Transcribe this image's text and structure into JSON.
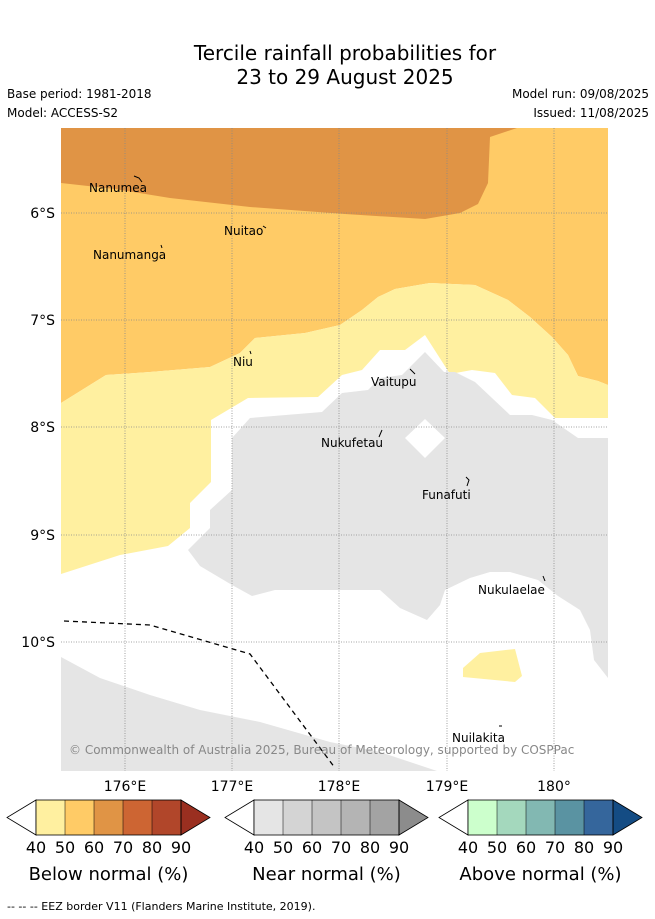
{
  "title": {
    "line1": "Tercile rainfall probabilities for",
    "line2": "23 to 29 August 2025"
  },
  "meta": {
    "base_period": "Base period: 1981-2018",
    "model": "Model: ACCESS-S2",
    "model_run": "Model run: 09/08/2025",
    "issued": "Issued: 11/08/2025"
  },
  "map": {
    "lat_labels": [
      "6°S",
      "7°S",
      "8°S",
      "9°S",
      "10°S"
    ],
    "lon_labels": [
      "176°E",
      "177°E",
      "178°E",
      "179°E",
      "180°"
    ],
    "places": [
      "Nanumea",
      "Nuitao",
      "Nanumanga",
      "Niu",
      "Vaitupu",
      "Nukufetau",
      "Funafuti",
      "Nukulaelae",
      "Nuilakita"
    ],
    "copyright": "© Commonwealth of Australia 2025, Bureau of Meteorology, supported by COSPPac"
  },
  "colors": {
    "below": [
      "#fff0a0",
      "#ffcb66",
      "#e09445",
      "#cd6533",
      "#b1462a",
      "#9a2f20"
    ],
    "near": [
      "#e5e5e5",
      "#d4d4d4",
      "#c4c4c4",
      "#b4b4b4",
      "#a3a3a3",
      "#8c8c8c"
    ],
    "above": [
      "#ccffcc",
      "#a4d8bd",
      "#82b8b2",
      "#5a93a2",
      "#35669c",
      "#144c84"
    ]
  },
  "legend": {
    "ticks": [
      "40",
      "50",
      "60",
      "70",
      "80",
      "90"
    ],
    "below_label": "Below normal (%)",
    "near_label": "Near normal (%)",
    "above_label": "Above normal (%)"
  },
  "footer": "-- -- -- EEZ border V11 (Flanders Marine Institute, 2019)."
}
